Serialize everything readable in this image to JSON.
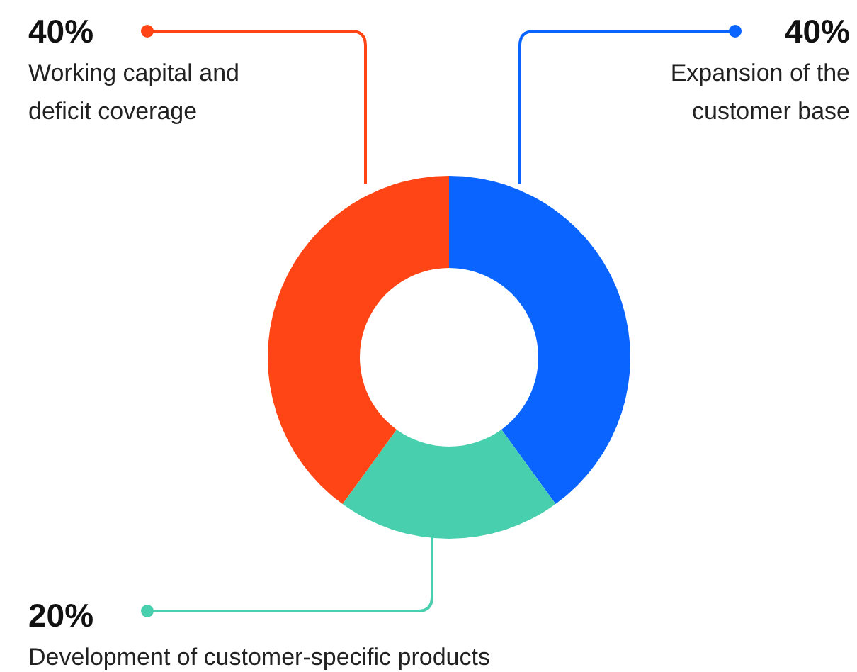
{
  "chart_data": {
    "type": "donut",
    "categories": [
      "Expansion of the customer base",
      "Development of customer-specific products",
      "Working capital and deficit coverage"
    ],
    "values": [
      40,
      20,
      40
    ],
    "colors": [
      "#0a64ff",
      "#48cfad",
      "#ff4515"
    ],
    "value_labels": [
      "40%",
      "20%",
      "40%"
    ],
    "legend": "top"
  }
}
